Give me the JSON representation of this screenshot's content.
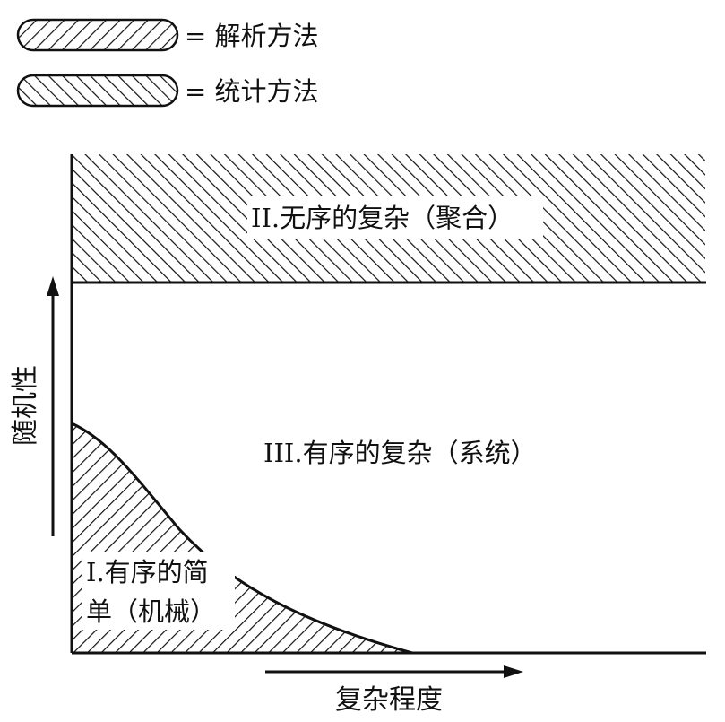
{
  "legend": {
    "analytic_label": "= 解析方法",
    "statistic_label": "= 统计方法"
  },
  "regions": {
    "disorganized": "II.无序的复杂（聚合）",
    "organized": "III.有序的复杂（系统）",
    "simple_line1": "I.有序的简",
    "simple_line2": "单（机械）"
  },
  "axes": {
    "y_label": "随机性",
    "x_label": "复杂程度"
  },
  "colors": {
    "ink": "#111111",
    "paper": "#ffffff"
  }
}
